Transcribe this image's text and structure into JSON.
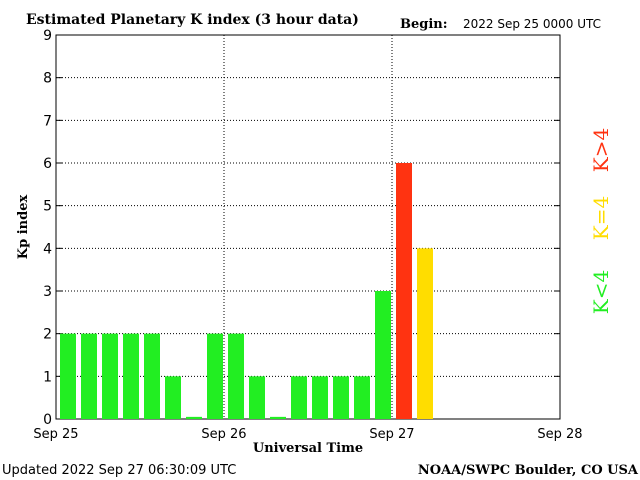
{
  "header": {
    "title": "Estimated Planetary K index (3 hour data)",
    "begin_label": "Begin:",
    "begin_value": "2022 Sep 25 0000 UTC"
  },
  "footer": {
    "updated": "Updated 2022 Sep 27 06:30:09 UTC",
    "source": "NOAA/SWPC Boulder, CO USA"
  },
  "chart_data": {
    "type": "bar",
    "title": "Estimated Planetary K index (3 hour data)",
    "xlabel": "Universal Time",
    "ylabel": "Kp index",
    "ylim": [
      0,
      9
    ],
    "yticks": [
      0,
      1,
      2,
      3,
      4,
      5,
      6,
      7,
      8,
      9
    ],
    "xticks": [
      "Sep 25",
      "Sep 26",
      "Sep 27",
      "Sep 28"
    ],
    "slots_total": 24,
    "values": [
      2,
      2,
      2,
      2,
      2,
      1,
      0.05,
      2,
      2,
      1,
      0.05,
      1,
      1,
      1,
      1,
      3,
      6,
      4
    ],
    "grid": true,
    "legend": [
      {
        "label": "K<4",
        "color": "#22ee22"
      },
      {
        "label": "K=4",
        "color": "#ffdd00"
      },
      {
        "label": "K>4",
        "color": "#ff3311"
      }
    ],
    "colors": {
      "low": "#22ee22",
      "equal": "#ffdd00",
      "high": "#ff3311"
    }
  }
}
